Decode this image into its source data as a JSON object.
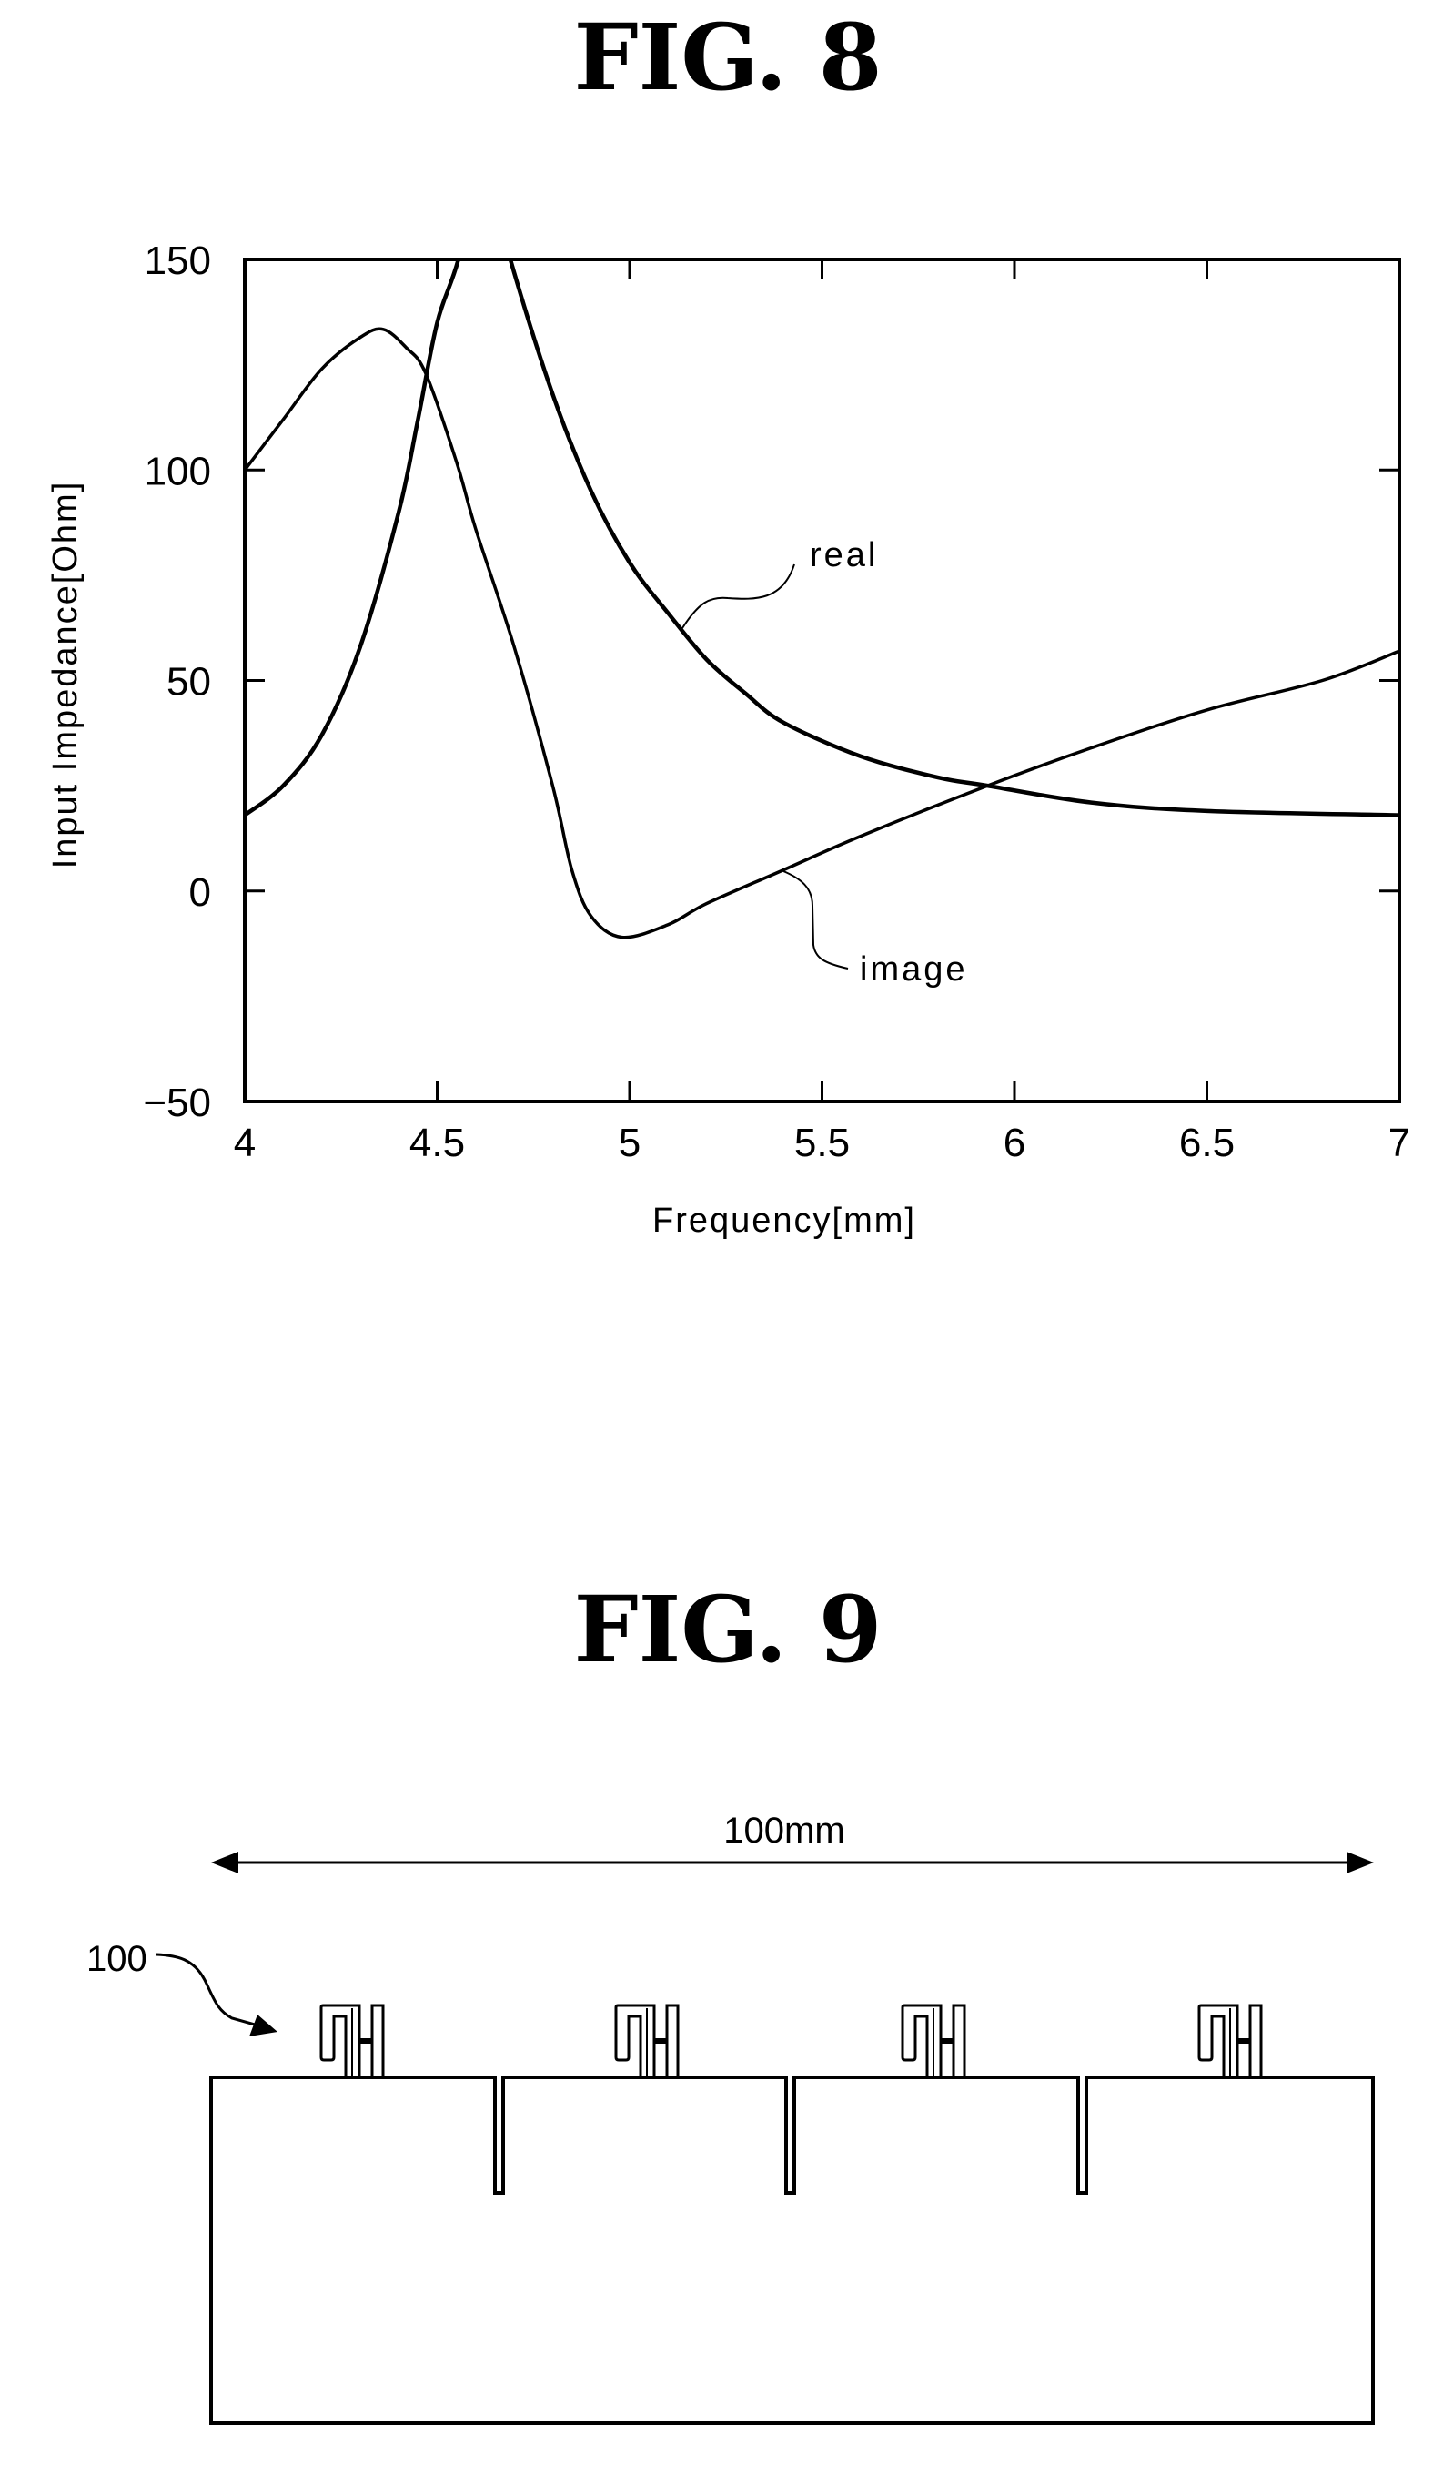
{
  "fig8": {
    "title": "FIG. 8"
  },
  "fig9": {
    "title": "FIG. 9",
    "dimension_label": "100mm",
    "reference_label": "100",
    "antenna_count": 4,
    "slot_count": 3
  },
  "chart_data": {
    "type": "line",
    "title": "FIG. 8",
    "xlabel": "Frequency[mm]",
    "ylabel": "Input Impedance[Ohm]",
    "xlim": [
      4,
      7
    ],
    "ylim": [
      -50,
      150
    ],
    "xticks": [
      "4",
      "4.5",
      "5",
      "5.5",
      "6",
      "6.5",
      "7"
    ],
    "yticks": [
      "150",
      "100",
      "50",
      "0",
      "-50"
    ],
    "grid": false,
    "legend": "inline annotations",
    "annotations": [
      "real",
      "image"
    ],
    "series": [
      {
        "name": "real",
        "x": [
          4.0,
          4.1,
          4.2,
          4.3,
          4.4,
          4.45,
          4.5,
          4.555,
          4.69,
          4.8,
          4.9,
          5.0,
          5.1,
          5.2,
          5.3,
          5.4,
          5.6,
          5.8,
          5.93,
          6.2,
          6.5,
          7.0
        ],
        "values": [
          18,
          25,
          37,
          58,
          90,
          112,
          135,
          150,
          150,
          118,
          95,
          78,
          66,
          55,
          47,
          40,
          32,
          27,
          25,
          21,
          19,
          18
        ]
      },
      {
        "name": "image",
        "x": [
          4.0,
          4.1,
          4.2,
          4.3,
          4.36,
          4.42,
          4.47,
          4.55,
          4.6,
          4.7,
          4.8,
          4.85,
          4.9,
          4.98,
          5.1,
          5.2,
          5.4,
          5.6,
          5.93,
          6.2,
          6.5,
          6.8,
          7.0
        ],
        "values": [
          100,
          112,
          124,
          131.5,
          133.4,
          129,
          123,
          102,
          86,
          58,
          25,
          5,
          -6,
          -11,
          -8,
          -3,
          5,
          13,
          25,
          34,
          43,
          50,
          57
        ]
      }
    ]
  }
}
